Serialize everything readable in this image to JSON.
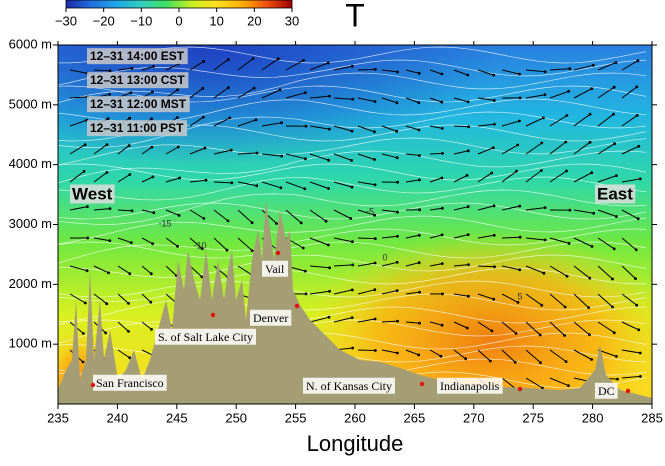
{
  "chart_data": {
    "type": "cross-section",
    "title": "T",
    "xlabel": "Longitude",
    "xlim": [
      235,
      285
    ],
    "xticks": [
      235,
      240,
      245,
      250,
      255,
      260,
      265,
      270,
      275,
      280,
      285
    ],
    "ylim": [
      0,
      6000
    ],
    "yticks": [
      {
        "value": 1000,
        "label": "1000 m"
      },
      {
        "value": 2000,
        "label": "2000 m"
      },
      {
        "value": 3000,
        "label": "3000 m"
      },
      {
        "value": 4000,
        "label": "4000 m"
      },
      {
        "value": 5000,
        "label": "5000 m"
      },
      {
        "value": 6000,
        "label": "6000 m"
      }
    ],
    "clim": [
      -30,
      30
    ],
    "cticks": [
      {
        "value": -30,
        "label": "−30"
      },
      {
        "value": -20,
        "label": "−20"
      },
      {
        "value": -10,
        "label": "−10"
      },
      0,
      10,
      20,
      30
    ],
    "contour_levels": [
      -15,
      -10,
      -5,
      0,
      5
    ],
    "time_labels": [
      "12–31 14:00 EST",
      "12–31 13:00 CST",
      "12–31 12:00 MST",
      "12–31 11:00 PST"
    ],
    "region_labels": [
      "West",
      "East"
    ],
    "city_labels": [
      "San Francisco",
      "S. of Salt Lake City",
      "Vail",
      "Denver",
      "N. of Kansas City",
      "Indianapolis",
      "DC"
    ]
  }
}
